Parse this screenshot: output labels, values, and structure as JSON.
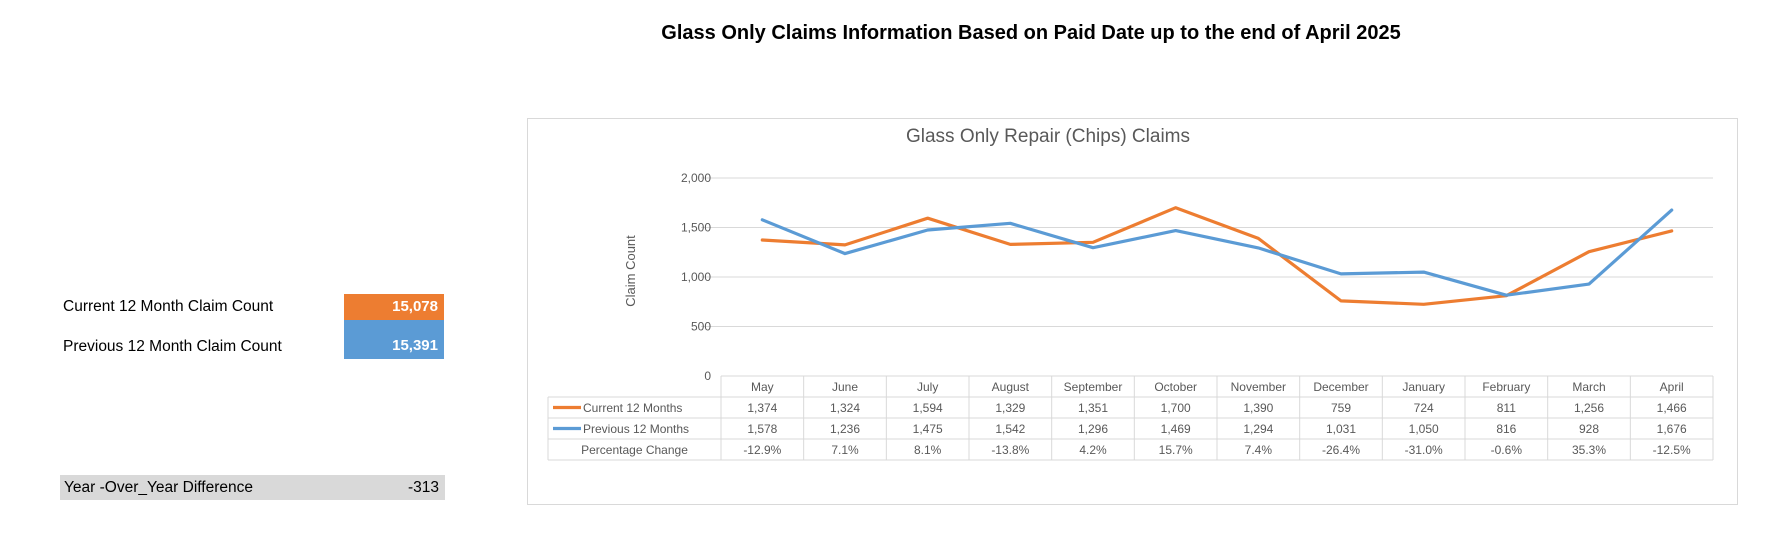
{
  "page_title": "Glass Only Claims Information Based on Paid Date up to the end of April 2025",
  "kpis": {
    "current": {
      "label": "Current 12 Month Claim Count",
      "value": "15,078",
      "color": "#ED7D31"
    },
    "previous": {
      "label": "Previous 12 Month Claim Count",
      "value": "15,391",
      "color": "#5B9BD5"
    },
    "yoy": {
      "label": "Year -Over_Year Difference",
      "value": "-313"
    }
  },
  "chart_data": {
    "type": "line",
    "title": "Glass Only Repair (Chips) Claims",
    "ylabel": "Claim Count",
    "ylim": [
      0,
      2000
    ],
    "yticks": [
      0,
      500,
      1000,
      1500,
      2000
    ],
    "ytick_labels": [
      "0",
      "500",
      "1,000",
      "1,500",
      "2,000"
    ],
    "categories": [
      "May",
      "June",
      "July",
      "August",
      "September",
      "October",
      "November",
      "December",
      "January",
      "February",
      "March",
      "April"
    ],
    "series": [
      {
        "name": "Current 12 Months",
        "color": "#ED7D31",
        "values": [
          1374,
          1324,
          1594,
          1329,
          1351,
          1700,
          1390,
          759,
          724,
          811,
          1256,
          1466
        ],
        "labels": [
          "1,374",
          "1,324",
          "1,594",
          "1,329",
          "1,351",
          "1,700",
          "1,390",
          "759",
          "724",
          "811",
          "1,256",
          "1,466"
        ]
      },
      {
        "name": "Previous 12 Months",
        "color": "#5B9BD5",
        "values": [
          1578,
          1236,
          1475,
          1542,
          1296,
          1469,
          1294,
          1031,
          1050,
          816,
          928,
          1676
        ],
        "labels": [
          "1,578",
          "1,236",
          "1,475",
          "1,542",
          "1,296",
          "1,469",
          "1,294",
          "1,031",
          "1,050",
          "816",
          "928",
          "1,676"
        ]
      }
    ],
    "pct_row_label": "Percentage Change",
    "pct_change": [
      "-12.9%",
      "7.1%",
      "8.1%",
      "-13.8%",
      "4.2%",
      "15.7%",
      "7.4%",
      "-26.4%",
      "-31.0%",
      "-0.6%",
      "35.3%",
      "-12.5%"
    ]
  }
}
